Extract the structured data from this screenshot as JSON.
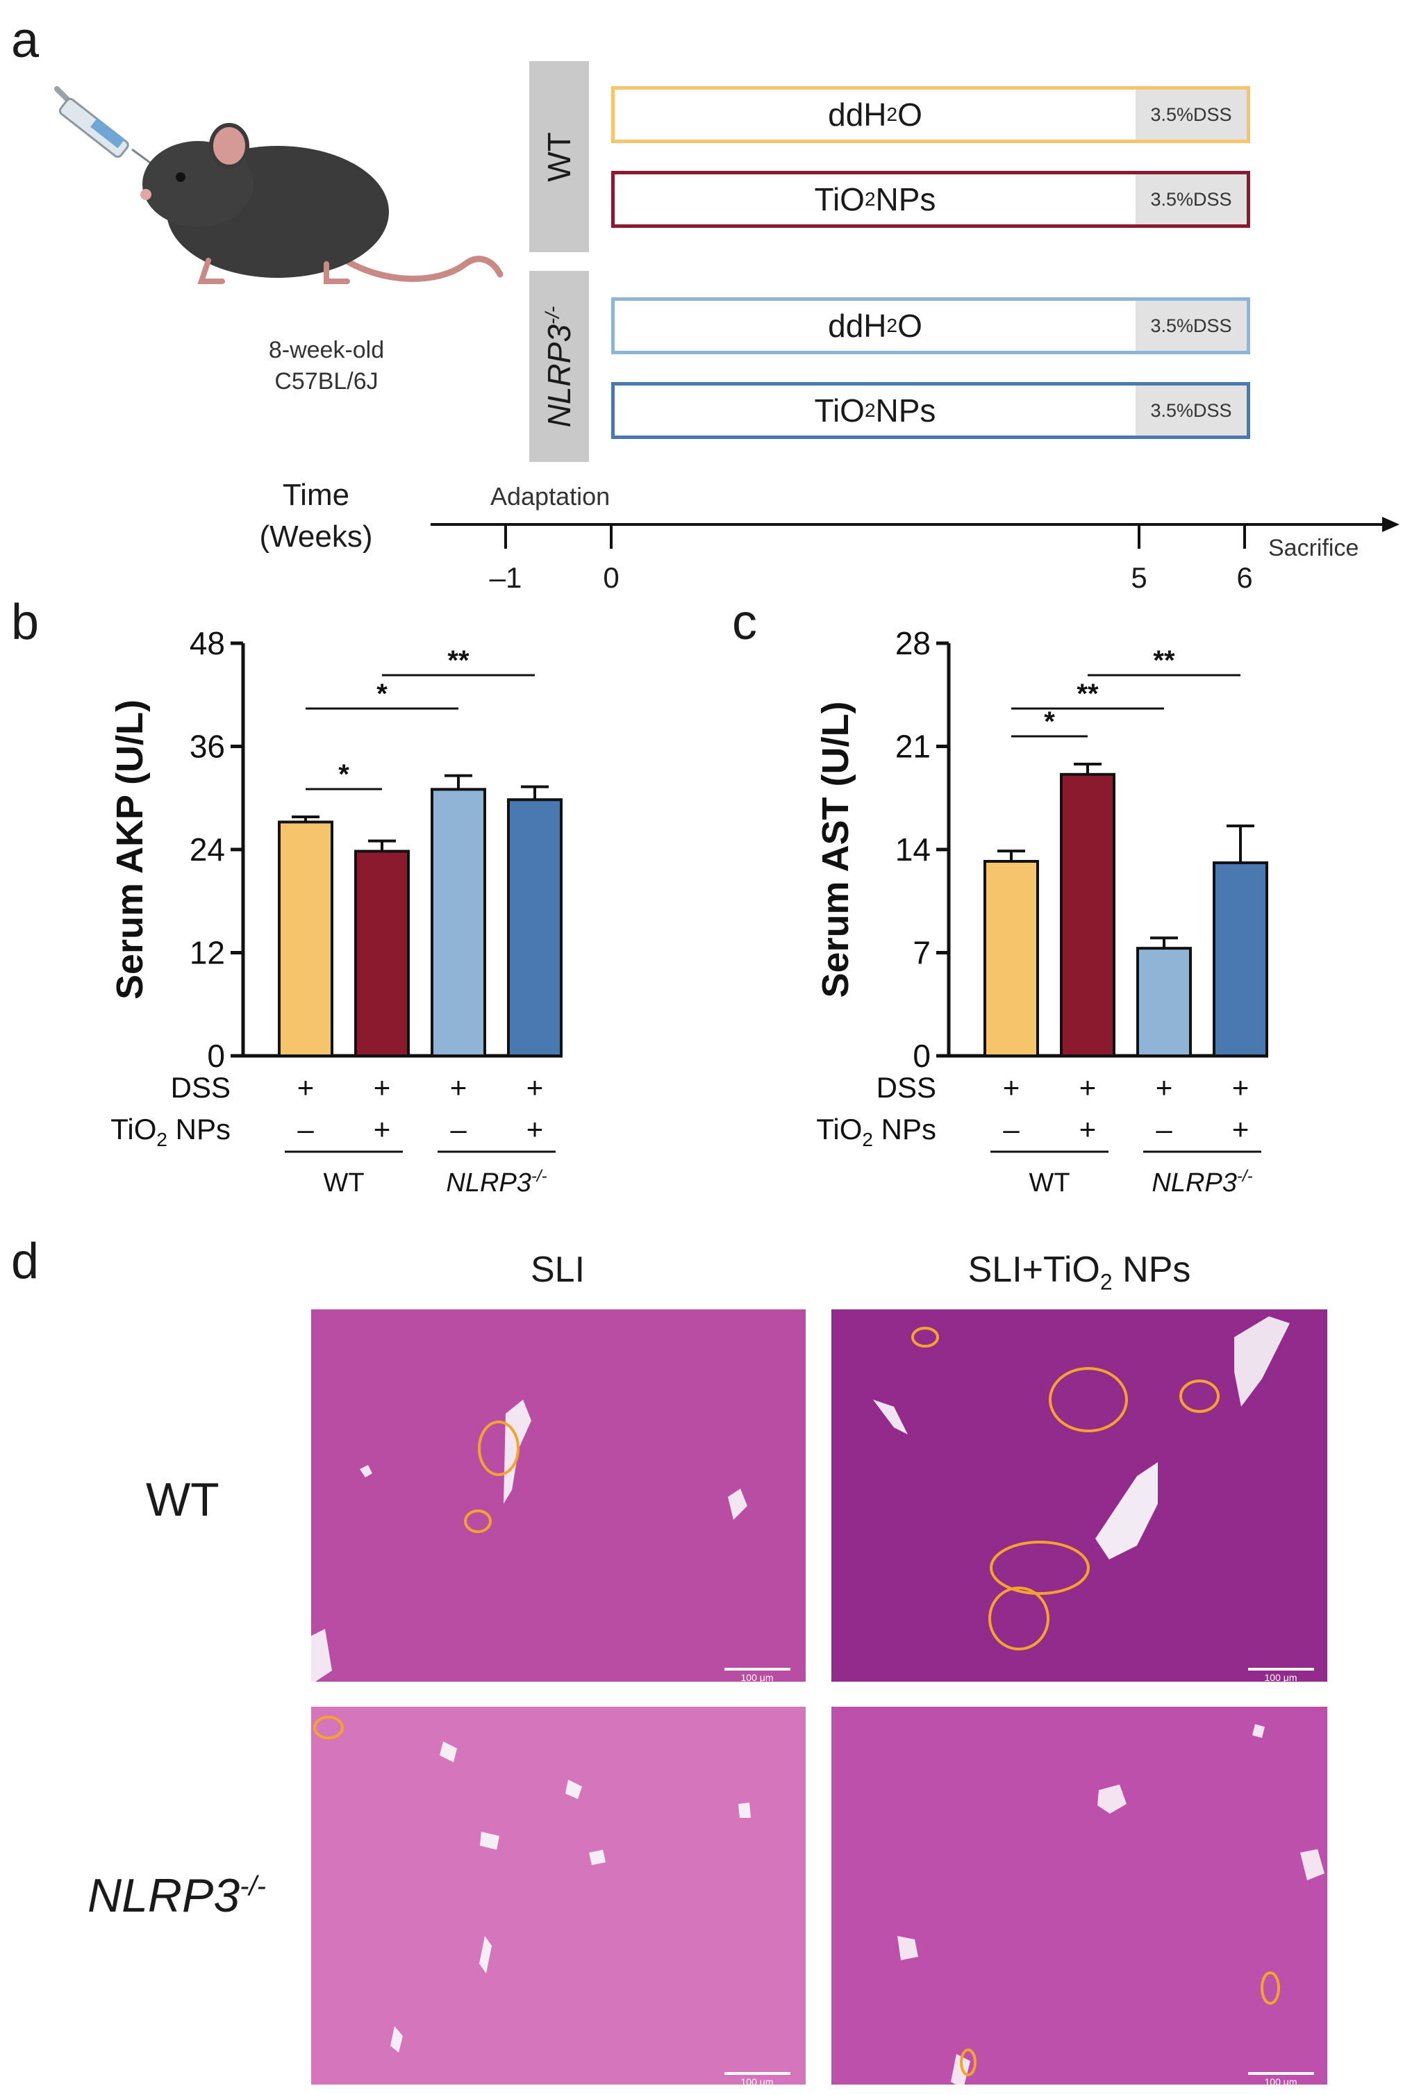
{
  "panels": {
    "a": "a",
    "b": "b",
    "c": "c",
    "d": "d"
  },
  "panel_a": {
    "mouse_caption_line1": "8-week-old",
    "mouse_caption_line2": "C57BL/6J",
    "group_wt": "WT",
    "group_ko": "NLRP3",
    "group_ko_sup": "-/-",
    "rows": [
      {
        "label": "ddH",
        "sub": "2",
        "tail": "O",
        "dss": "3.5%DSS",
        "color": "#f6c46a"
      },
      {
        "label": "TiO",
        "sub": "2",
        "tail": " NPs",
        "dss": "3.5%DSS",
        "color": "#8b1a2e"
      },
      {
        "label": "ddH",
        "sub": "2",
        "tail": "O",
        "dss": "3.5%DSS",
        "color": "#8fb4d6"
      },
      {
        "label": "TiO",
        "sub": "2",
        "tail": " NPs",
        "dss": "3.5%DSS",
        "color": "#4a78b0"
      }
    ],
    "timeline": {
      "label_line1": "Time",
      "label_line2": "(Weeks)",
      "adaptation": "Adaptation",
      "sacrifice": "Sacrifice",
      "ticks": [
        "–1",
        "0",
        "5",
        "6"
      ]
    }
  },
  "treatment_rows": {
    "dss_label": "DSS",
    "tio2_label": "TiO",
    "tio2_sub": "2",
    "tio2_tail": " NPs",
    "dss_values": [
      "+",
      "+",
      "+",
      "+"
    ],
    "tio2_values": [
      "–",
      "+",
      "–",
      "+"
    ],
    "group_wt": "WT",
    "group_ko": "NLRP3",
    "group_ko_sup": "-/-"
  },
  "chart_data": [
    {
      "type": "bar",
      "panel": "b",
      "ylabel": "Serum AKP (U/L)",
      "ylim": [
        0,
        48
      ],
      "yticks": [
        "0",
        "12",
        "24",
        "36",
        "48"
      ],
      "categories": [
        "WT ddH2O",
        "WT TiO2 NPs",
        "NLRP3-/- ddH2O",
        "NLRP3-/- TiO2 NPs"
      ],
      "values": [
        27.2,
        23.8,
        31.0,
        29.8
      ],
      "errors": [
        0.6,
        1.2,
        1.6,
        1.5
      ],
      "colors": [
        "#f6c46a",
        "#8b1a2e",
        "#8fb4d6",
        "#4a78b0"
      ],
      "significance": [
        {
          "from": 0,
          "to": 1,
          "label": "*"
        },
        {
          "from": 0,
          "to": 2,
          "label": "*"
        },
        {
          "from": 1,
          "to": 3,
          "label": "**"
        }
      ]
    },
    {
      "type": "bar",
      "panel": "c",
      "ylabel": "Serum AST (U/L)",
      "ylim": [
        0,
        28
      ],
      "yticks": [
        "0",
        "7",
        "14",
        "21",
        "28"
      ],
      "categories": [
        "WT ddH2O",
        "WT TiO2 NPs",
        "NLRP3-/- ddH2O",
        "NLRP3-/- TiO2 NPs"
      ],
      "values": [
        13.2,
        19.1,
        7.3,
        13.1
      ],
      "errors": [
        0.7,
        0.7,
        0.7,
        2.5
      ],
      "colors": [
        "#f6c46a",
        "#8b1a2e",
        "#8fb4d6",
        "#4a78b0"
      ],
      "significance": [
        {
          "from": 0,
          "to": 1,
          "label": "*"
        },
        {
          "from": 0,
          "to": 2,
          "label": "**"
        },
        {
          "from": 1,
          "to": 3,
          "label": "**"
        }
      ]
    }
  ],
  "panel_d": {
    "col1": "SLI",
    "col2_a": "SLI+TiO",
    "col2_sub": "2",
    "col2_b": " NPs",
    "row1": "WT",
    "row2": "NLRP3",
    "row2_sup": "-/-",
    "scale_label": "100 μm"
  },
  "colors": {
    "wt_ddh2o": "#f6c46a",
    "wt_tio2": "#8b1a2e",
    "ko_ddh2o": "#8fb4d6",
    "ko_tio2": "#4a78b0",
    "he_stain": "#b0469e"
  }
}
